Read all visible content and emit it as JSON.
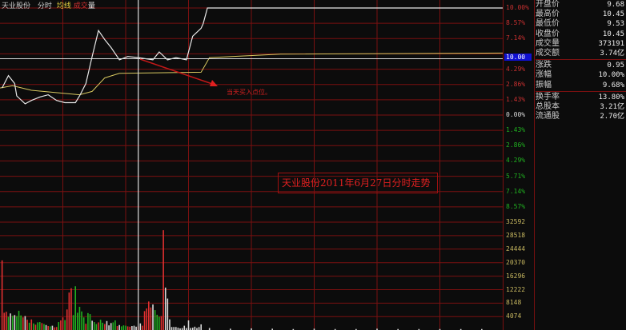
{
  "header": {
    "name": "天业股份",
    "tab_intraday": "分时",
    "tab_avg": "均线",
    "tab_vol_a": "成交",
    "tab_vol_b": "量"
  },
  "annotation": "当天买入点位。",
  "title_box": "天业股份2011年6月27日分时走势",
  "info": [
    {
      "label": "开盘价",
      "value": "9.68"
    },
    {
      "label": "最高价",
      "value": "10.45"
    },
    {
      "label": "最低价",
      "value": "9.53"
    },
    {
      "label": "收盘价",
      "value": "10.45"
    },
    {
      "label": "成交量",
      "value": "373191"
    },
    {
      "label": "成交额",
      "value": "3.74亿"
    },
    {
      "label": "涨跌",
      "value": "0.95"
    },
    {
      "label": "涨幅",
      "value": "10.00%"
    },
    {
      "label": "振幅",
      "value": "9.68%"
    },
    {
      "label": "换手率",
      "value": "13.80%"
    },
    {
      "label": "总股本",
      "value": "3.21亿"
    },
    {
      "label": "流通股",
      "value": "2.70亿"
    }
  ],
  "colors": {
    "price": "#e8e8e8",
    "avg": "#d8c860",
    "up": "#e03030",
    "down": "#20b020",
    "grid": "#7a1010",
    "cursor_label_bg": "#1010d0"
  },
  "chart_data": {
    "type": "line",
    "prev_close": 9.5,
    "cursor_label": "10.00",
    "price_axis_labels": [
      {
        "t": "10.00%",
        "c": "up"
      },
      {
        "t": "8.57%",
        "c": "up"
      },
      {
        "t": "7.14%",
        "c": "up"
      },
      {
        "t": "",
        "c": "up"
      },
      {
        "t": "4.29%",
        "c": "up"
      },
      {
        "t": "2.86%",
        "c": "up"
      },
      {
        "t": "1.43%",
        "c": "up"
      },
      {
        "t": "0.00%",
        "c": "flat"
      },
      {
        "t": "1.43%",
        "c": "down"
      },
      {
        "t": "2.86%",
        "c": "down"
      },
      {
        "t": "4.29%",
        "c": "down"
      },
      {
        "t": "5.71%",
        "c": "down"
      },
      {
        "t": "7.14%",
        "c": "down"
      },
      {
        "t": "8.57%",
        "c": "down"
      }
    ],
    "volume_axis_labels": [
      "32592",
      "28518",
      "24444",
      "20370",
      "16296",
      "12222",
      "8148",
      "4074"
    ],
    "ylim_pct": [
      -10,
      10
    ],
    "volume_max": 36666,
    "minutes": 240,
    "cursor_minute": 66,
    "price": [
      [
        1,
        9.74
      ],
      [
        4,
        9.85
      ],
      [
        7,
        9.78
      ],
      [
        8,
        9.67
      ],
      [
        12,
        9.6
      ],
      [
        15,
        9.63
      ],
      [
        19,
        9.66
      ],
      [
        23,
        9.68
      ],
      [
        27,
        9.63
      ],
      [
        31,
        9.61
      ],
      [
        36,
        9.61
      ],
      [
        38,
        9.67
      ],
      [
        41,
        9.78
      ],
      [
        44,
        10.02
      ],
      [
        47,
        10.25
      ],
      [
        50,
        10.17
      ],
      [
        53,
        10.1
      ],
      [
        57,
        9.99
      ],
      [
        61,
        10.02
      ],
      [
        66,
        10.01
      ],
      [
        73,
        9.99
      ],
      [
        76,
        10.06
      ],
      [
        80,
        9.99
      ],
      [
        84,
        10.01
      ],
      [
        89,
        9.99
      ],
      [
        92,
        10.2
      ],
      [
        96,
        10.27
      ],
      [
        97,
        10.31
      ],
      [
        99,
        10.45
      ],
      [
        240,
        10.45
      ]
    ],
    "avg": [
      [
        0,
        9.74
      ],
      [
        6,
        9.76
      ],
      [
        15,
        9.72
      ],
      [
        38,
        9.68
      ],
      [
        44,
        9.71
      ],
      [
        50,
        9.83
      ],
      [
        57,
        9.87
      ],
      [
        96,
        9.88
      ],
      [
        100,
        10.01
      ],
      [
        134,
        10.04
      ],
      [
        240,
        10.05
      ]
    ],
    "volume": [
      [
        1,
        21000,
        "up"
      ],
      [
        2,
        5200,
        "up"
      ],
      [
        3,
        5500,
        "up"
      ],
      [
        4,
        4000,
        "down"
      ],
      [
        5,
        5000,
        "flat"
      ],
      [
        6,
        4300,
        "down"
      ],
      [
        7,
        4500,
        "flat"
      ],
      [
        8,
        4200,
        "down"
      ],
      [
        9,
        5800,
        "down"
      ],
      [
        10,
        4400,
        "down"
      ],
      [
        11,
        3800,
        "up"
      ],
      [
        12,
        4200,
        "flat"
      ],
      [
        13,
        3100,
        "up"
      ],
      [
        14,
        2200,
        "down"
      ],
      [
        15,
        3200,
        "up"
      ],
      [
        16,
        2000,
        "down"
      ],
      [
        17,
        1600,
        "up"
      ],
      [
        18,
        2300,
        "down"
      ],
      [
        19,
        2400,
        "down"
      ],
      [
        20,
        2100,
        "up"
      ],
      [
        21,
        1800,
        "down"
      ],
      [
        22,
        1500,
        "flat"
      ],
      [
        23,
        1200,
        "up"
      ],
      [
        24,
        1100,
        "down"
      ],
      [
        25,
        1300,
        "flat"
      ],
      [
        26,
        800,
        "up"
      ],
      [
        27,
        900,
        "up"
      ],
      [
        28,
        2400,
        "down"
      ],
      [
        29,
        2900,
        "up"
      ],
      [
        30,
        3800,
        "up"
      ],
      [
        31,
        3000,
        "down"
      ],
      [
        32,
        6200,
        "up"
      ],
      [
        33,
        11300,
        "up"
      ],
      [
        34,
        12600,
        "up"
      ],
      [
        35,
        4500,
        "down"
      ],
      [
        36,
        13200,
        "down"
      ],
      [
        37,
        5200,
        "down"
      ],
      [
        38,
        7000,
        "down"
      ],
      [
        39,
        5600,
        "down"
      ],
      [
        40,
        3800,
        "down"
      ],
      [
        41,
        1900,
        "up"
      ],
      [
        42,
        5100,
        "down"
      ],
      [
        43,
        4800,
        "down"
      ],
      [
        44,
        2800,
        "flat"
      ],
      [
        45,
        2400,
        "down"
      ],
      [
        46,
        1800,
        "down"
      ],
      [
        47,
        2300,
        "up"
      ],
      [
        48,
        3100,
        "down"
      ],
      [
        49,
        2200,
        "down"
      ],
      [
        50,
        1800,
        "up"
      ],
      [
        51,
        2700,
        "flat"
      ],
      [
        52,
        1400,
        "flat"
      ],
      [
        53,
        2100,
        "flat"
      ],
      [
        54,
        2300,
        "down"
      ],
      [
        55,
        2900,
        "down"
      ],
      [
        56,
        1200,
        "up"
      ],
      [
        57,
        1500,
        "flat"
      ],
      [
        58,
        1100,
        "down"
      ],
      [
        59,
        1400,
        "down"
      ],
      [
        60,
        1300,
        "down"
      ],
      [
        61,
        1100,
        "up"
      ],
      [
        62,
        1000,
        "up"
      ],
      [
        63,
        1200,
        "flat"
      ],
      [
        64,
        1300,
        "flat"
      ],
      [
        65,
        1000,
        "flat"
      ],
      [
        66,
        1100,
        "up"
      ],
      [
        67,
        2000,
        "flat"
      ],
      [
        68,
        1300,
        "up"
      ],
      [
        69,
        5700,
        "up"
      ],
      [
        70,
        6500,
        "up"
      ],
      [
        71,
        8600,
        "up"
      ],
      [
        72,
        6800,
        "up"
      ],
      [
        73,
        7700,
        "flat"
      ],
      [
        74,
        6000,
        "down"
      ],
      [
        75,
        4600,
        "down"
      ],
      [
        76,
        4000,
        "down"
      ],
      [
        77,
        4200,
        "up"
      ],
      [
        78,
        30100,
        "up"
      ],
      [
        79,
        12800,
        "flat"
      ],
      [
        80,
        9500,
        "flat"
      ],
      [
        81,
        3200,
        "flat"
      ],
      [
        82,
        900,
        "flat"
      ],
      [
        83,
        900,
        "flat"
      ],
      [
        84,
        900,
        "flat"
      ],
      [
        85,
        700,
        "flat"
      ],
      [
        86,
        500,
        "flat"
      ],
      [
        87,
        600,
        "flat"
      ],
      [
        88,
        1300,
        "flat"
      ],
      [
        89,
        600,
        "flat"
      ],
      [
        90,
        2900,
        "flat"
      ],
      [
        91,
        600,
        "flat"
      ],
      [
        92,
        700,
        "flat"
      ],
      [
        93,
        1000,
        "flat"
      ],
      [
        94,
        600,
        "flat"
      ],
      [
        95,
        900,
        "flat"
      ],
      [
        96,
        1700,
        "flat"
      ],
      [
        100,
        600,
        "flat"
      ],
      [
        110,
        400,
        "flat"
      ],
      [
        120,
        500,
        "flat"
      ],
      [
        130,
        400,
        "flat"
      ],
      [
        140,
        300,
        "flat"
      ],
      [
        150,
        400,
        "flat"
      ],
      [
        160,
        300,
        "flat"
      ],
      [
        170,
        300,
        "flat"
      ],
      [
        180,
        400,
        "flat"
      ],
      [
        190,
        300,
        "flat"
      ],
      [
        200,
        300,
        "flat"
      ],
      [
        210,
        300,
        "flat"
      ],
      [
        220,
        300,
        "flat"
      ],
      [
        230,
        300,
        "flat"
      ]
    ]
  }
}
